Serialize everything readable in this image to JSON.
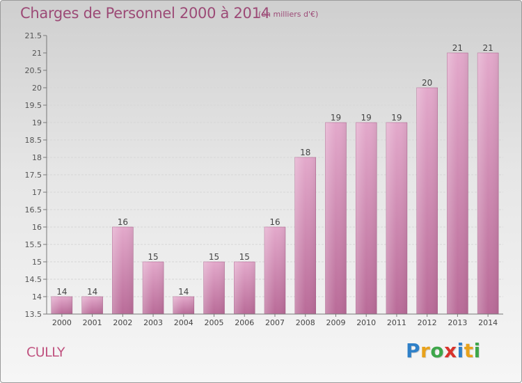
{
  "title": "Charges de Personnel 2000 à 2014",
  "subtitle": "(en milliers d'€)",
  "commune": "CULLY",
  "brand": {
    "letters": [
      "P",
      "r",
      "o",
      "x",
      "i",
      "t",
      "i"
    ],
    "colors": [
      "#2f80c8",
      "#e8a21c",
      "#3ea64a",
      "#d8332c",
      "#2f80c8",
      "#e8a21c",
      "#3ea64a"
    ]
  },
  "chart_data": {
    "type": "bar",
    "categories": [
      "2000",
      "2001",
      "2002",
      "2003",
      "2004",
      "2005",
      "2006",
      "2007",
      "2008",
      "2009",
      "2010",
      "2011",
      "2012",
      "2013",
      "2014"
    ],
    "values": [
      14,
      14,
      16,
      15,
      14,
      15,
      15,
      16,
      18,
      19,
      19,
      19,
      20,
      21,
      21
    ],
    "ylim": [
      13.5,
      21.5
    ],
    "yticks": [
      "13.5",
      "14",
      "14.5",
      "15",
      "15.5",
      "16",
      "16.5",
      "17",
      "17.5",
      "18",
      "18.5",
      "19",
      "19.5",
      "20",
      "20.5",
      "21",
      "21.5"
    ],
    "grid": true,
    "bar_color": "#d996bd"
  }
}
